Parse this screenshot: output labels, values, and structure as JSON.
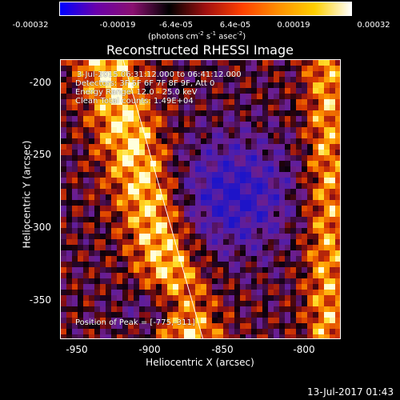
{
  "colorbar": {
    "ticks": [
      "-0.00032",
      "-0.00019",
      "-6.4e-05",
      "6.4e-05",
      "0.00019",
      "0.00032"
    ],
    "unit": "(photons cm",
    "unit_exp1": "-2",
    "unit_mid": " s",
    "unit_exp2": "-1",
    "unit_mid2": " asec",
    "unit_exp3": "-2",
    "unit_end": ")",
    "colors": [
      "#0000ff",
      "#6a00aa",
      "#8a1070",
      "#000000",
      "#a01010",
      "#ff4000",
      "#ff9000",
      "#ffd000",
      "#ffffff"
    ]
  },
  "chart_data": {
    "type": "heatmap",
    "title": "Reconstructed RHESSI Image",
    "xlabel": "Heliocentric X (arcsec)",
    "ylabel": "Heliocentric Y (arcsec)",
    "xlim": [
      -962,
      -827
    ],
    "ylim": [
      -377,
      -186
    ],
    "xticks": [
      -950,
      -900,
      -850,
      -800
    ],
    "yticks": [
      -200,
      -250,
      -300,
      -350
    ],
    "annotations": [
      "3-Jul-2015 06:31:12.000 to 06:41:12.000",
      "Detectors: 3F 5F 6F 7F 8F 9F, Att 0",
      "Energy Range: 12.0 - 25.0 keV",
      "Clean     Total counts: 1.49E+04"
    ],
    "peak_label": "Position of Peak = [-775,-311]",
    "peak": [
      -775,
      -311
    ]
  },
  "footer": {
    "date": "13-Jul-2017 01:43"
  }
}
